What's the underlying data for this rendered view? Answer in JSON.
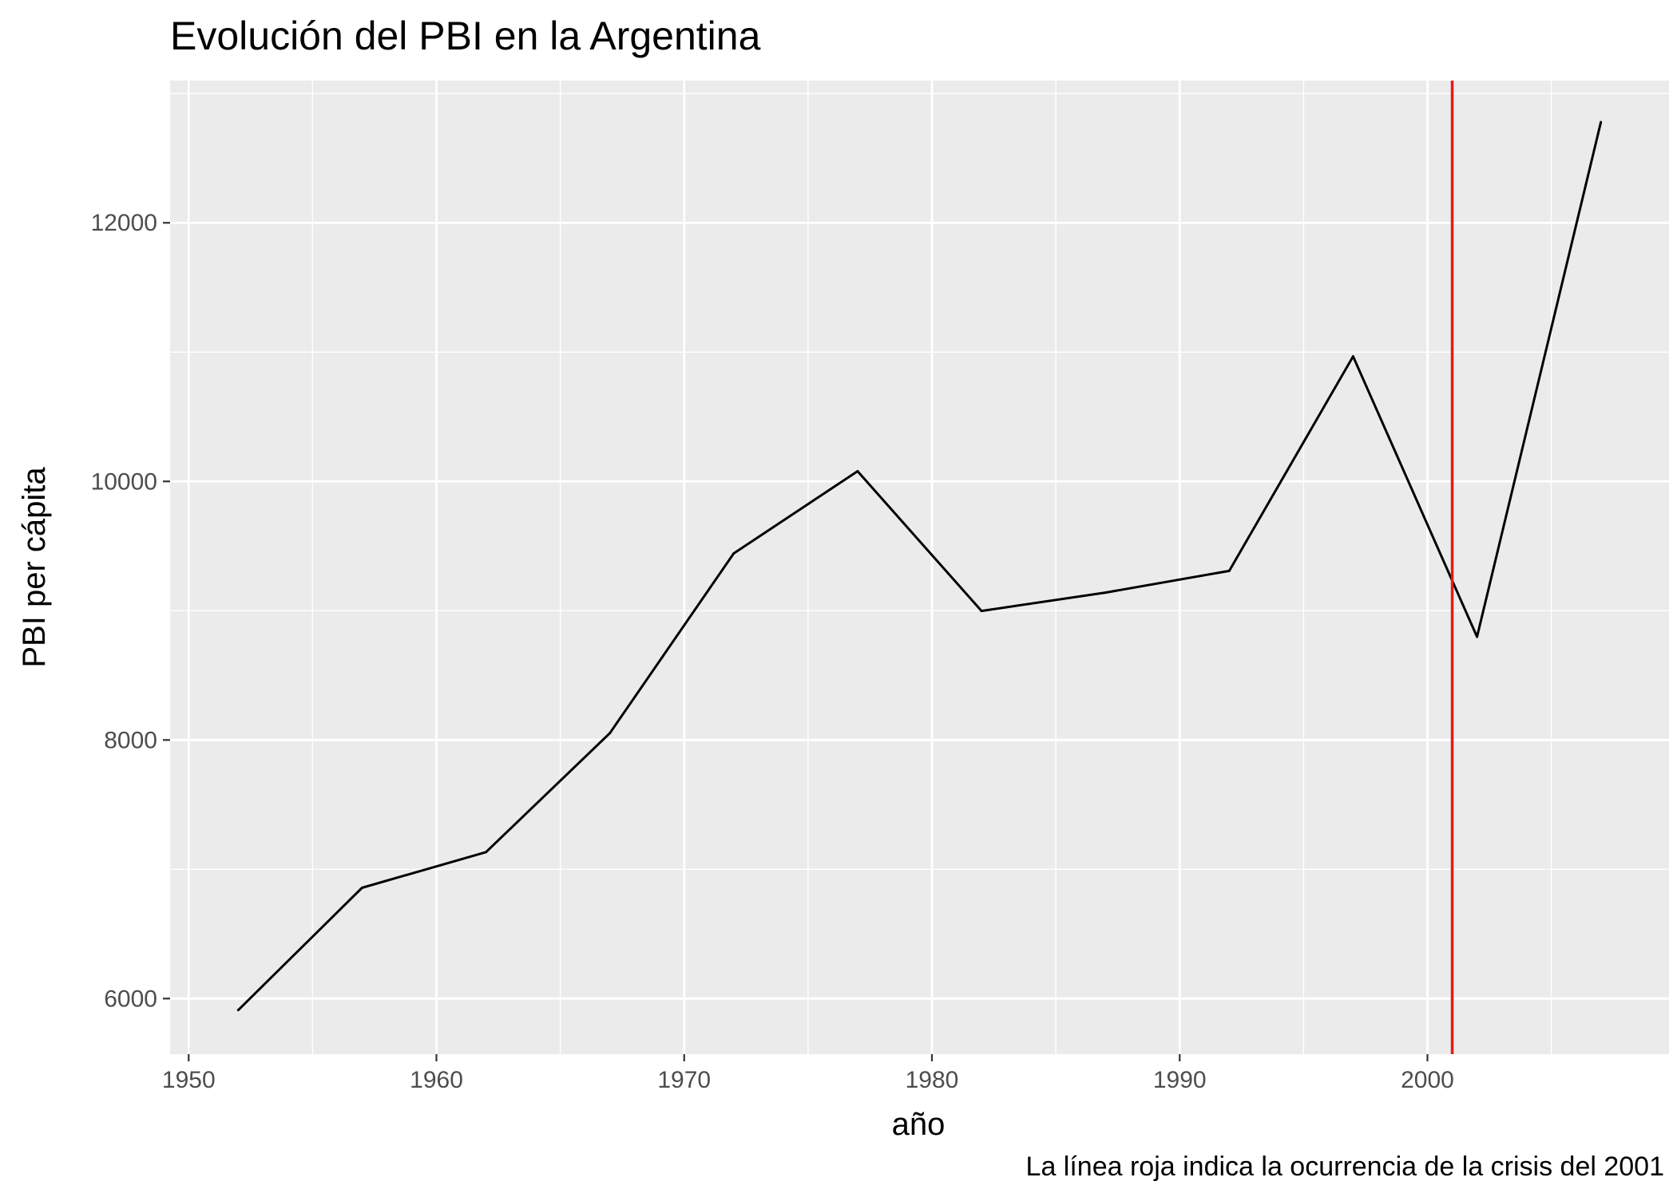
{
  "chart_data": {
    "type": "line",
    "title": "Evolución del PBI en la Argentina",
    "xlabel": "año",
    "ylabel": "PBI per cápita",
    "caption": "La línea roja indica la ocurrencia de la crisis del 2001",
    "xlim": [
      1949.25,
      2009.75
    ],
    "ylim": [
      5570,
      13100
    ],
    "x_ticks": [
      1950,
      1960,
      1970,
      1980,
      1990,
      2000
    ],
    "x_minor_ticks": [
      1955,
      1965,
      1975,
      1985,
      1995,
      2005
    ],
    "y_ticks": [
      6000,
      8000,
      10000,
      12000
    ],
    "y_minor_ticks": [
      7000,
      9000,
      11000,
      13000
    ],
    "grid": true,
    "series": [
      {
        "x": [
          1952,
          1957,
          1962,
          1967,
          1972,
          1977,
          1982,
          1987,
          1992,
          1997,
          2002,
          2007
        ],
        "values": [
          5911,
          6857,
          7133,
          8053,
          9443,
          10079,
          8998,
          9140,
          9308,
          10967,
          8798,
          12779
        ],
        "color": "#000000"
      }
    ],
    "vline": {
      "x": 2001,
      "color": "#e41a1c"
    },
    "panel_color": "#ebebeb",
    "grid_color": "#ffffff"
  }
}
